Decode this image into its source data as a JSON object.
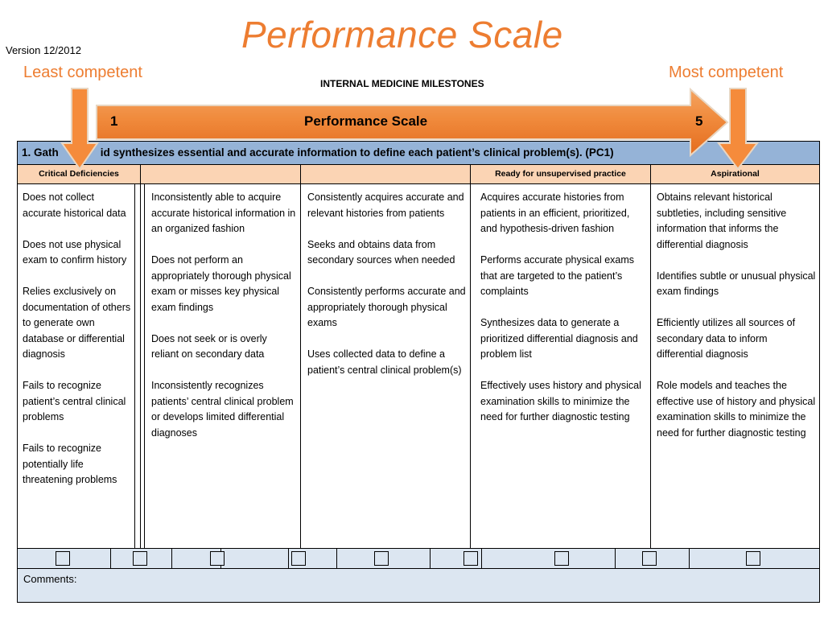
{
  "version": "Version 12/2012",
  "slide_title": "Performance Scale",
  "least_label": "Least competent",
  "most_label": "Most competent",
  "doc_heading": "INTERNAL MEDICINE MILESTONES",
  "scale_bar": {
    "left": "1",
    "center": "Performance Scale",
    "right": "5"
  },
  "competency_heading": "1. Gathers and synthesizes essential and accurate information to define each patient’s clinical problem(s). (PC1)",
  "competency_heading_visible": "1. Gath",
  "competency_heading_rest": "id synthesizes essential and accurate information to define each patient’s clinical problem(s). (PC1)",
  "levels": [
    "Critical Deficiencies",
    "",
    "",
    "Ready for unsupervised practice",
    "Aspirational"
  ],
  "columns": [
    [
      "Does not collect accurate historical data",
      "Does not use physical exam to confirm history",
      "Relies exclusively on documentation of others to generate own database or differential diagnosis",
      "Fails to recognize patient’s central clinical problems",
      "Fails to recognize potentially life threatening problems"
    ],
    [
      "Inconsistently able to acquire accurate historical information in an organized fashion",
      "Does not perform an appropriately thorough physical exam or misses key physical exam findings",
      "Does not seek or is overly reliant on secondary data",
      "Inconsistently recognizes patients’ central clinical problem or develops limited differential diagnoses"
    ],
    [
      "Consistently acquires accurate and relevant histories from patients",
      "Seeks and obtains data from secondary sources when needed",
      "Consistently performs accurate and appropriately thorough physical exams",
      "Uses collected data to define a patient’s central clinical problem(s)"
    ],
    [
      "Acquires accurate histories from patients in an efficient, prioritized, and hypothesis-driven fashion",
      "Performs accurate physical exams that are targeted to the patient’s complaints",
      "Synthesizes data to generate a prioritized differential diagnosis and problem list",
      "Effectively uses history and physical examination skills to minimize the need for further diagnostic testing"
    ],
    [
      "Obtains relevant historical subtleties, including sensitive information that informs the differential diagnosis",
      "Identifies subtle or unusual physical exam findings",
      "Efficiently utilizes all sources of secondary data to inform differential diagnosis",
      "Role models and teaches the effective use of history and physical examination skills to minimize the need for further diagnostic testing"
    ]
  ],
  "comments_label": "Comments:",
  "colors": {
    "accent_orange": "#ED7D31",
    "header_blue": "#95B3D7",
    "level_peach": "#FBD4B4",
    "row_lightblue": "#DCE6F1"
  }
}
